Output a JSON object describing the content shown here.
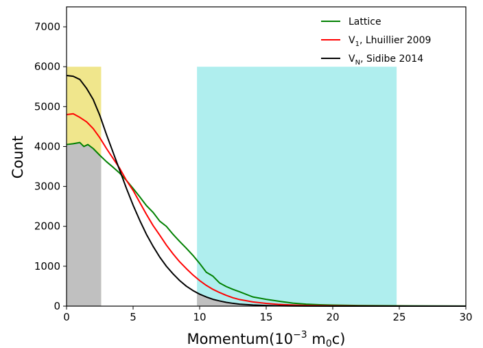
{
  "chart_data": {
    "type": "line",
    "xlabel_main": "Momentum(10",
    "xlabel_sup": "−3",
    "xlabel_unit": " m",
    "xlabel_sub": "0",
    "xlabel_end": "c)",
    "ylabel": "Count",
    "xlim": [
      0,
      30
    ],
    "ylim": [
      0,
      7500
    ],
    "x_ticks": [
      0,
      5,
      10,
      15,
      20,
      25,
      30
    ],
    "x_tick_labels": [
      "0",
      "5",
      "10",
      "15",
      "20",
      "25",
      "30"
    ],
    "y_ticks": [
      0,
      1000,
      2000,
      3000,
      4000,
      5000,
      6000,
      7000
    ],
    "y_tick_labels": [
      "0",
      "1000",
      "2000",
      "3000",
      "4000",
      "5000",
      "6000",
      "7000"
    ],
    "grid": false,
    "legend_position": "top-right",
    "regions": [
      {
        "x0": 0,
        "x1": 2.6,
        "y0": 0,
        "y1": 6000,
        "color": "#f0e68c"
      },
      {
        "x0": 9.8,
        "x1": 24.8,
        "y0": 0,
        "y1": 6000,
        "color": "#afeeee"
      }
    ],
    "series": [
      {
        "name": "Lattice",
        "name_prefix": "Lattice",
        "name_sub": "",
        "name_suffix": "",
        "color": "#008000",
        "x": [
          0,
          0.5,
          1,
          1.3,
          1.6,
          2,
          2.5,
          3,
          3.5,
          4,
          4.5,
          5,
          5.5,
          6,
          6.5,
          7,
          7.5,
          8,
          8.5,
          9,
          9.5,
          10,
          10.5,
          11,
          11.5,
          12,
          12.5,
          13,
          14,
          15,
          16,
          17,
          18,
          19,
          20,
          22,
          24,
          26,
          28,
          30
        ],
        "y": [
          4050,
          4070,
          4100,
          4000,
          4050,
          3950,
          3780,
          3620,
          3480,
          3330,
          3150,
          2950,
          2740,
          2520,
          2350,
          2130,
          2000,
          1800,
          1620,
          1450,
          1270,
          1070,
          850,
          750,
          580,
          490,
          420,
          360,
          230,
          170,
          120,
          75,
          50,
          35,
          25,
          15,
          10,
          6,
          4,
          2
        ]
      },
      {
        "name": "V1, Lhuillier 2009",
        "name_prefix": "V",
        "name_sub": "1",
        "name_suffix": ", Lhuillier 2009",
        "color": "#ff0000",
        "x": [
          0,
          0.5,
          1,
          1.5,
          2,
          2.5,
          3,
          3.5,
          4,
          4.5,
          5,
          5.5,
          6,
          6.5,
          7,
          7.5,
          8,
          8.5,
          9,
          9.5,
          10,
          10.5,
          11,
          11.5,
          12,
          12.5,
          13,
          14,
          15,
          16,
          17,
          18,
          19,
          20,
          22,
          24,
          26,
          28,
          30
        ],
        "y": [
          4800,
          4820,
          4730,
          4620,
          4450,
          4220,
          3950,
          3700,
          3450,
          3150,
          2900,
          2600,
          2300,
          2020,
          1780,
          1530,
          1310,
          1110,
          940,
          780,
          640,
          520,
          420,
          340,
          270,
          210,
          165,
          105,
          68,
          42,
          28,
          18,
          12,
          8,
          4,
          2,
          1,
          0,
          0
        ]
      },
      {
        "name": "VN, Sidibe 2014",
        "name_prefix": "V",
        "name_sub": "N",
        "name_suffix": ", Sidibe 2014",
        "color": "#000000",
        "x": [
          0,
          0.5,
          1,
          1.5,
          2,
          2.5,
          3,
          3.5,
          4,
          4.5,
          5,
          5.5,
          6,
          6.5,
          7,
          7.5,
          8,
          8.5,
          9,
          9.5,
          10,
          10.5,
          11,
          11.5,
          12,
          12.5,
          13,
          14,
          15,
          16,
          17,
          18,
          20,
          22,
          25,
          30
        ],
        "y": [
          5780,
          5760,
          5680,
          5460,
          5180,
          4780,
          4300,
          3850,
          3400,
          2950,
          2530,
          2150,
          1800,
          1500,
          1230,
          1000,
          810,
          640,
          500,
          390,
          300,
          230,
          170,
          130,
          95,
          70,
          50,
          28,
          15,
          8,
          4,
          2,
          1,
          0,
          0,
          0
        ]
      }
    ]
  }
}
